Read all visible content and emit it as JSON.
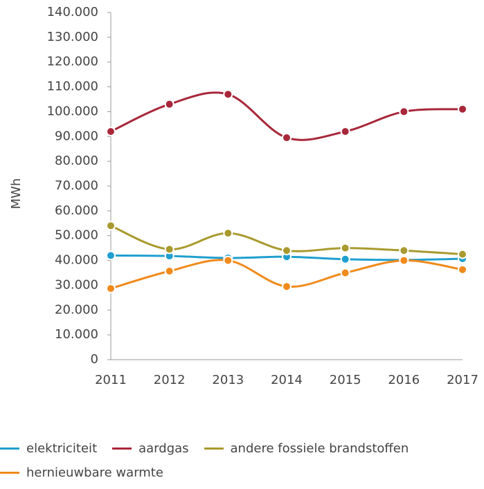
{
  "chart_data": {
    "type": "line",
    "y_label": "MWh",
    "categories": [
      "2011",
      "2012",
      "2013",
      "2014",
      "2015",
      "2016",
      "2017"
    ],
    "series": [
      {
        "name": "elektriciteit",
        "color": "#1f9fcf",
        "values": [
          42000,
          41800,
          41000,
          41500,
          40500,
          40200,
          40700
        ]
      },
      {
        "name": "aardgas",
        "color": "#a8273a",
        "values": [
          92000,
          103000,
          107000,
          89500,
          92000,
          100000,
          101000
        ]
      },
      {
        "name": "andere fossiele brandstoffen",
        "color": "#a89a2e",
        "values": [
          54000,
          44500,
          51000,
          44000,
          45000,
          44000,
          42500
        ]
      },
      {
        "name": "hernieuwbare warmte",
        "color": "#f08a1c",
        "values": [
          28700,
          35700,
          40000,
          29500,
          35000,
          40000,
          36300
        ]
      }
    ],
    "ylim": [
      0,
      140000
    ],
    "yticks": [
      0,
      {
        "value": 10000,
        "label": "10.000"
      },
      {
        "value": 20000,
        "label": "20.000"
      },
      {
        "value": 30000,
        "label": "30.000"
      },
      {
        "value": 40000,
        "label": "40.000"
      },
      {
        "value": 50000,
        "label": "50.000"
      },
      {
        "value": 60000,
        "label": "60.000"
      },
      {
        "value": 70000,
        "label": "70.000"
      },
      {
        "value": 80000,
        "label": "80.000"
      },
      {
        "value": 90000,
        "label": "90.000"
      },
      {
        "value": 100000,
        "label": "100.000"
      },
      {
        "value": 110000,
        "label": "110.000"
      },
      {
        "value": 120000,
        "label": "120.000"
      },
      {
        "value": 130000,
        "label": "130.000"
      },
      {
        "value": 140000,
        "label": "140.000"
      }
    ],
    "grid": false,
    "legend": "bottom"
  }
}
